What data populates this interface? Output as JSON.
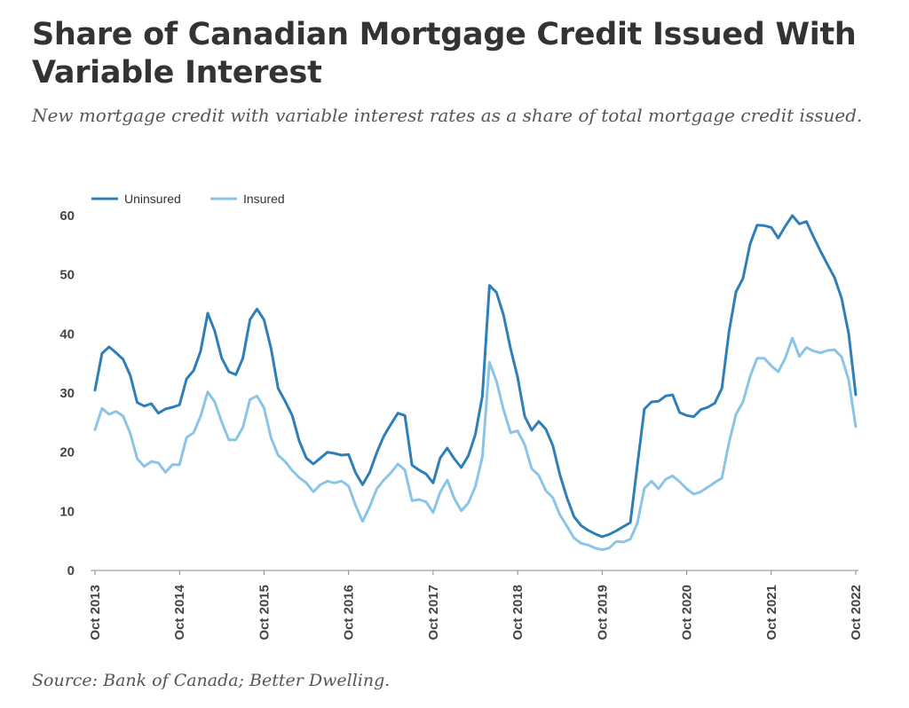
{
  "header": {
    "title": "Share of Canadian Mortgage Credit Issued With Variable Interest",
    "subtitle": "New mortgage credit with variable interest rates as a share of total mortgage credit issued."
  },
  "footer": {
    "source": "Source: Bank of Canada; Better Dwelling."
  },
  "chart_data": {
    "type": "line",
    "title": "Share of Canadian Mortgage Credit Issued With Variable Interest",
    "xlabel": "",
    "ylabel": "",
    "ylim": [
      0,
      60
    ],
    "yticks": [
      0,
      10,
      20,
      30,
      40,
      50,
      60
    ],
    "xticks": [
      "Oct 2013",
      "Oct 2014",
      "Oct 2015",
      "Oct 2016",
      "Oct 2017",
      "Oct 2018",
      "Oct 2019",
      "Oct 2020",
      "Oct 2021",
      "Oct 2022"
    ],
    "x_start": "Oct 2013",
    "x_end": "Oct 2022",
    "frequency": "monthly",
    "grid": false,
    "legend_position": "top-left",
    "series": [
      {
        "name": "Uninsured",
        "color": "#2e7fb8",
        "values": [
          30.5,
          36.7,
          37.8,
          36.8,
          35.7,
          33,
          28.4,
          27.8,
          28.2,
          26.6,
          27.3,
          27.6,
          28,
          32.4,
          33.8,
          37.1,
          43.5,
          40.5,
          35.9,
          33.6,
          33.1,
          35.9,
          42.4,
          44.2,
          42.4,
          37.5,
          30.8,
          28.6,
          26.2,
          21.9,
          19,
          18,
          19,
          20,
          19.8,
          19.5,
          19.6,
          16.5,
          14.5,
          16.6,
          19.9,
          22.7,
          24.7,
          26.6,
          26.2,
          17.8,
          17,
          16.3,
          14.8,
          19,
          20.7,
          18.9,
          17.4,
          19.4,
          23,
          29.5,
          48.2,
          47,
          43.2,
          37.5,
          32.7,
          26.1,
          23.7,
          25.2,
          23.9,
          21.1,
          16.2,
          12.3,
          9.1,
          7.6,
          6.8,
          6.2,
          5.7,
          6.1,
          6.7,
          7.4,
          8.1,
          17.8,
          27.3,
          28.5,
          28.6,
          29.5,
          29.7,
          26.7,
          26.2,
          26,
          27.2,
          27.6,
          28.3,
          30.8,
          40.3,
          47.1,
          49.4,
          55.2,
          58.4,
          58.3,
          58,
          56.2,
          58.2,
          60,
          58.6,
          59,
          56.4,
          54,
          51.7,
          49.5,
          46,
          40,
          29.7
        ]
      },
      {
        "name": "Insured",
        "color": "#8ac4e6",
        "values": [
          23.8,
          27.4,
          26.4,
          26.9,
          26.1,
          23.2,
          18.9,
          17.6,
          18.4,
          18.2,
          16.6,
          17.9,
          17.9,
          22.5,
          23.3,
          26.1,
          30.2,
          28.5,
          25.1,
          22.1,
          22.1,
          24.2,
          28.9,
          29.5,
          27.5,
          22.4,
          19.5,
          18.4,
          16.9,
          15.7,
          14.8,
          13.3,
          14.5,
          15.1,
          14.8,
          15.1,
          14.3,
          11,
          8.3,
          10.8,
          13.8,
          15.3,
          16.5,
          18,
          17,
          11.8,
          12,
          11.6,
          9.8,
          13.2,
          15.3,
          12.2,
          10.1,
          11.4,
          14.2,
          19.2,
          35.2,
          32,
          27.2,
          23.3,
          23.6,
          21.3,
          17.2,
          16.1,
          13.5,
          12.3,
          9.4,
          7.5,
          5.5,
          4.6,
          4.3,
          3.8,
          3.5,
          3.8,
          4.9,
          4.8,
          5.3,
          8,
          13.9,
          15.1,
          13.8,
          15.4,
          16,
          15,
          13.8,
          12.9,
          13.3,
          14.1,
          14.9,
          15.6,
          21.6,
          26.4,
          28.5,
          32.8,
          35.9,
          35.9,
          34.6,
          33.6,
          35.9,
          39.3,
          36.2,
          37.7,
          37.1,
          36.8,
          37.2,
          37.3,
          36.1,
          32.2,
          24.3
        ]
      }
    ]
  }
}
